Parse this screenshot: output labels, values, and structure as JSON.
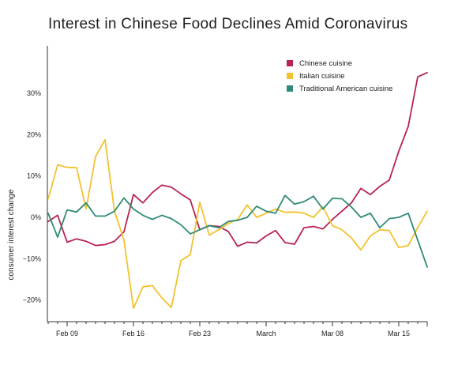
{
  "chart_data": {
    "type": "line",
    "title": "Interest in Chinese Food Declines Amid Coronavirus",
    "xlabel": "",
    "ylabel": "consumer interest change",
    "ylim": [
      -25,
      38
    ],
    "y_ticks": [
      -20,
      -10,
      0,
      10,
      20,
      30
    ],
    "y_tick_labels": [
      "−20%",
      "−10%",
      "0%",
      "10%",
      "20%",
      "30%"
    ],
    "x_tick_labels": [
      "Feb 09",
      "Feb 16",
      "Feb 23",
      "March",
      "Mar 08",
      "Mar 15"
    ],
    "x_tick_index": [
      2,
      9,
      16,
      23,
      30,
      37
    ],
    "legend_position": "top-right",
    "grid": false,
    "x_count": 41,
    "series": [
      {
        "name": "Chinese cuisine",
        "color": "#b8234f",
        "values": [
          -1,
          0.5,
          -6,
          -5.2,
          -5.8,
          -6.8,
          -6.6,
          -5.8,
          -3.5,
          5.5,
          3.5,
          6,
          7.8,
          7.3,
          5.7,
          4.2,
          -3,
          -2,
          -2.2,
          -3.4,
          -7,
          -6,
          -6.2,
          -4.5,
          -3.2,
          -6.1,
          -6.5,
          -2.5,
          -2.2,
          -2.8,
          -0.5,
          1.5,
          3.5,
          7,
          5.5,
          7.5,
          9,
          16,
          22,
          34,
          35
        ]
      },
      {
        "name": "Italian cuisine",
        "color": "#f2c230",
        "values": [
          4.5,
          12.7,
          12.1,
          12,
          2,
          14.7,
          18.8,
          1.5,
          -5.5,
          -22,
          -16.8,
          -16.5,
          -19.5,
          -21.8,
          -10.5,
          -9,
          3.7,
          -4.3,
          -3,
          -1.5,
          -0.5,
          3,
          0,
          1,
          2,
          1.2,
          1.3,
          1,
          0,
          2.5,
          -2,
          -3,
          -5,
          -7.9,
          -4.5,
          -3,
          -3.2,
          -7.3,
          -6.8,
          -2.5,
          1.5
        ]
      },
      {
        "name": "Traditional American cuisine",
        "color": "#2f8a78",
        "values": [
          1,
          -4.8,
          1.8,
          1.3,
          3.5,
          0.3,
          0.3,
          1.5,
          4.7,
          2,
          0.5,
          -0.5,
          0.5,
          -0.3,
          -1.8,
          -4,
          -3,
          -2,
          -2.5,
          -1,
          -0.7,
          0,
          2.7,
          1.5,
          1,
          5.3,
          3.2,
          3.8,
          5.1,
          2,
          4.6,
          4.5,
          2.5,
          0,
          1,
          -2.5,
          -0.3,
          0,
          1,
          -5.5,
          -12
        ]
      }
    ]
  }
}
